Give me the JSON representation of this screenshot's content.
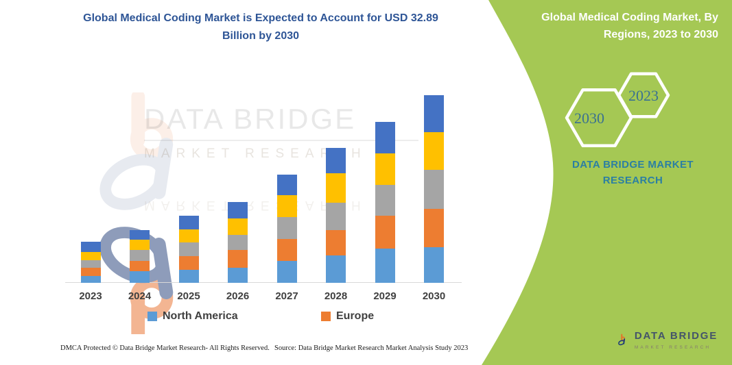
{
  "page": {
    "main_title": "Global Medical Coding Market is Expected to Account for USD 32.89 Billion by 2030",
    "panel_title": "Global Medical Coding Market, By Regions, 2023 to 2030",
    "hexagon_years": {
      "back": "2030",
      "front": "2023"
    },
    "brand_text": "DATA BRIDGE MARKET RESEARCH",
    "watermark": {
      "line1": "DATA BRIDGE",
      "line2": "MARKET RESEARCH"
    },
    "logo_badge": {
      "title": "DATA BRIDGE",
      "subtitle": "MARKET RESEARCH"
    },
    "footer": {
      "dmca": "DMCA Protected © Data Bridge Market Research-  All Rights Reserved.",
      "source": "Source: Data Bridge Market Research  Market Analysis Study 2023"
    },
    "colors": {
      "panel_green": "#A5C854",
      "title_blue": "#2E5596",
      "brand_teal": "#2B7FA3",
      "hexagon_year_blue": "#3A7191",
      "axis_label_gray": "#404040",
      "axis_line_gray": "#D9D9D9"
    }
  },
  "chart_data": {
    "type": "bar",
    "stacked": true,
    "title": "Global Medical Coding Market is Expected to Account for USD 32.89 Billion by 2030",
    "categories": [
      "2023",
      "2024",
      "2025",
      "2026",
      "2027",
      "2028",
      "2029",
      "2030"
    ],
    "series": [
      {
        "name": "North America",
        "color": "#5B9BD5",
        "values": [
          1.2,
          2.1,
          2.3,
          2.7,
          3.9,
          4.8,
          6.0,
          6.2
        ]
      },
      {
        "name": "Europe",
        "color": "#ED7D31",
        "values": [
          1.4,
          1.8,
          2.4,
          3.1,
          3.8,
          4.5,
          5.8,
          6.8
        ]
      },
      {
        "name": "Unlabeled region (gray)",
        "color": "#A5A5A5",
        "values": [
          1.4,
          1.9,
          2.4,
          2.6,
          3.8,
          4.8,
          5.4,
          6.8
        ]
      },
      {
        "name": "Unlabeled region (yellow)",
        "color": "#FFC000",
        "values": [
          1.4,
          1.8,
          2.3,
          2.9,
          3.8,
          5.1,
          5.5,
          6.6
        ]
      },
      {
        "name": "Unlabeled region (dark blue)",
        "color": "#4472C4",
        "values": [
          1.8,
          1.7,
          2.3,
          2.9,
          3.7,
          4.4,
          5.5,
          6.5
        ]
      }
    ],
    "totals_by_year": [
      7.2,
      9.3,
      11.7,
      14.2,
      19.0,
      23.6,
      28.2,
      32.9
    ],
    "value_unit": "USD Billion (estimated from bar heights; 2030 total stated as 32.89)",
    "xlabel": "",
    "ylabel": "",
    "y_axis_visible": false,
    "grid": false,
    "legend_position": "bottom",
    "legend_entries": [
      "North America",
      "Europe"
    ]
  }
}
